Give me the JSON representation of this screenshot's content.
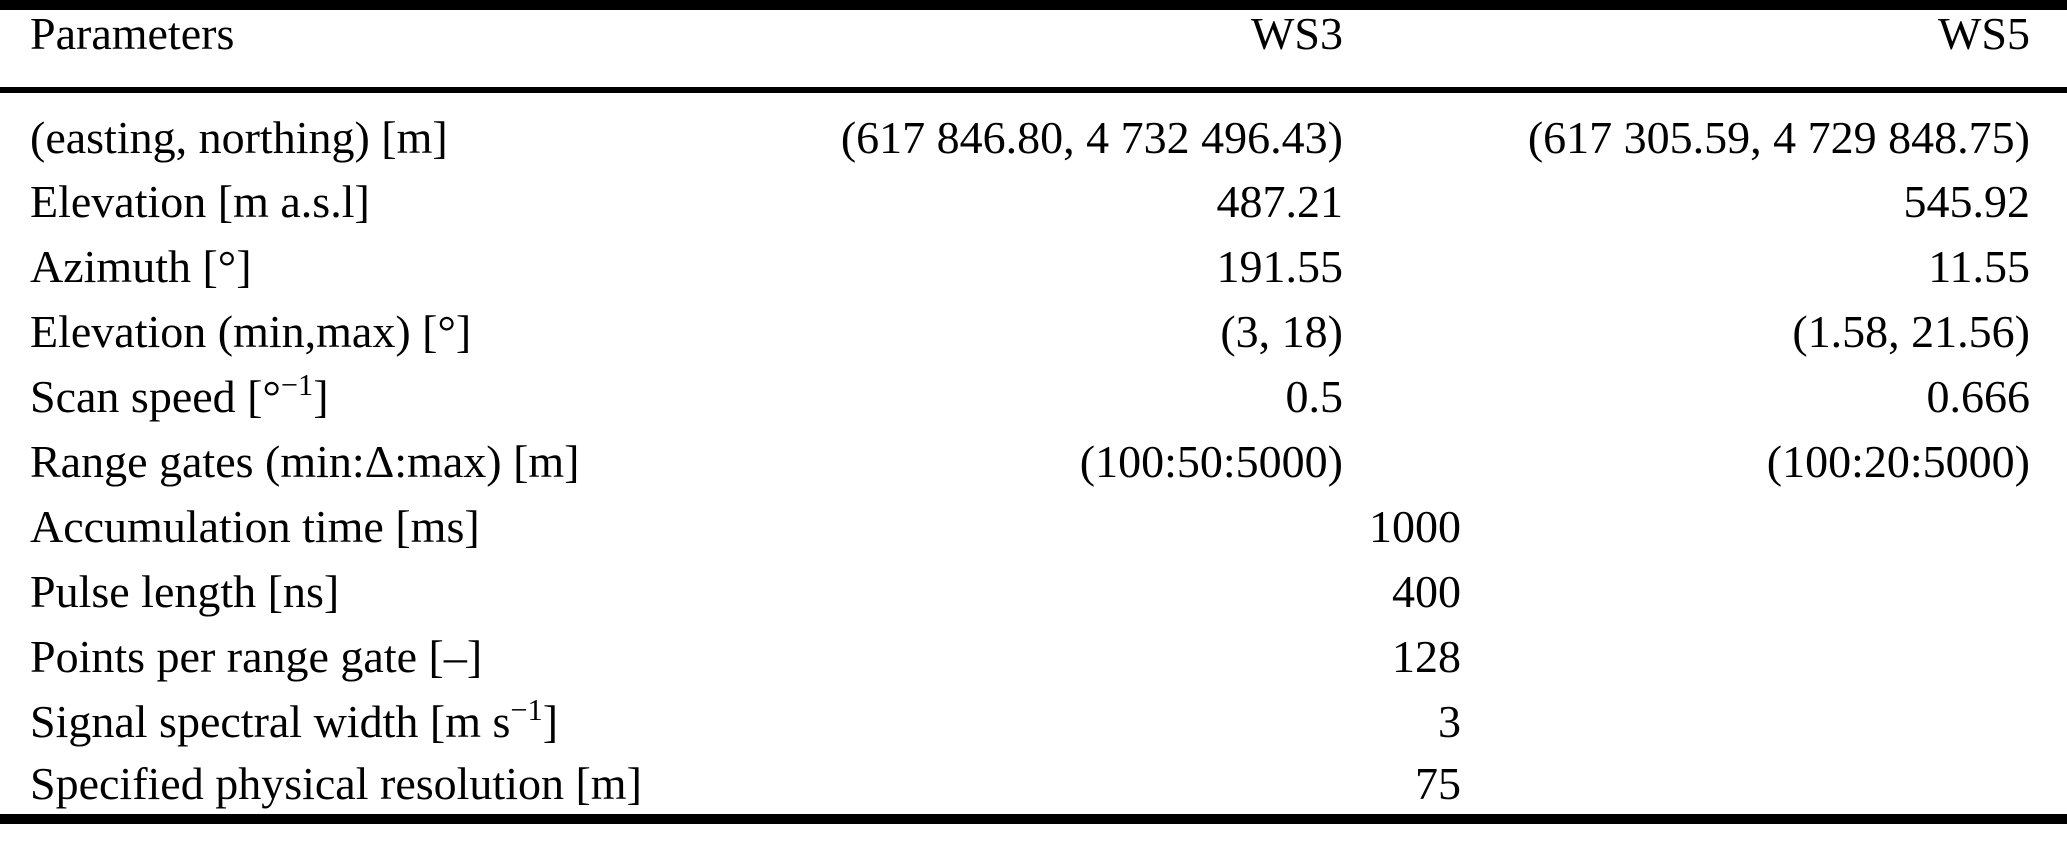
{
  "table": {
    "columns": [
      "Parameters",
      "WS3",
      "WS5"
    ],
    "rows": [
      {
        "label": "(easting, northing) [m]",
        "ws3": "(617 846.80, 4 732 496.43)",
        "ws5": "(617 305.59, 4 729 848.75)"
      },
      {
        "label": "Elevation [m a.s.l]",
        "ws3": "487.21",
        "ws5": "545.92"
      },
      {
        "label": "Azimuth [°]",
        "ws3": "191.55",
        "ws5": "11.55"
      },
      {
        "label": "Elevation (min,max) [°]",
        "ws3": "(3, 18)",
        "ws5": "(1.58, 21.56)"
      },
      {
        "label": "Scan speed [°^{−1}]",
        "ws3": "0.5",
        "ws5": "0.666"
      },
      {
        "label": "Range gates (min:Δ:max) [m]",
        "ws3": "(100:50:5000)",
        "ws5": "(100:20:5000)"
      },
      {
        "label": "Accumulation time [ms]",
        "shared": "1000"
      },
      {
        "label": "Pulse length [ns]",
        "shared": "400"
      },
      {
        "label": "Points per range gate [–]",
        "shared": "128"
      },
      {
        "label": "Signal spectral width [m s^{−1}]",
        "shared": "3"
      },
      {
        "label": "Specified physical resolution [m]",
        "shared": "75"
      }
    ]
  }
}
